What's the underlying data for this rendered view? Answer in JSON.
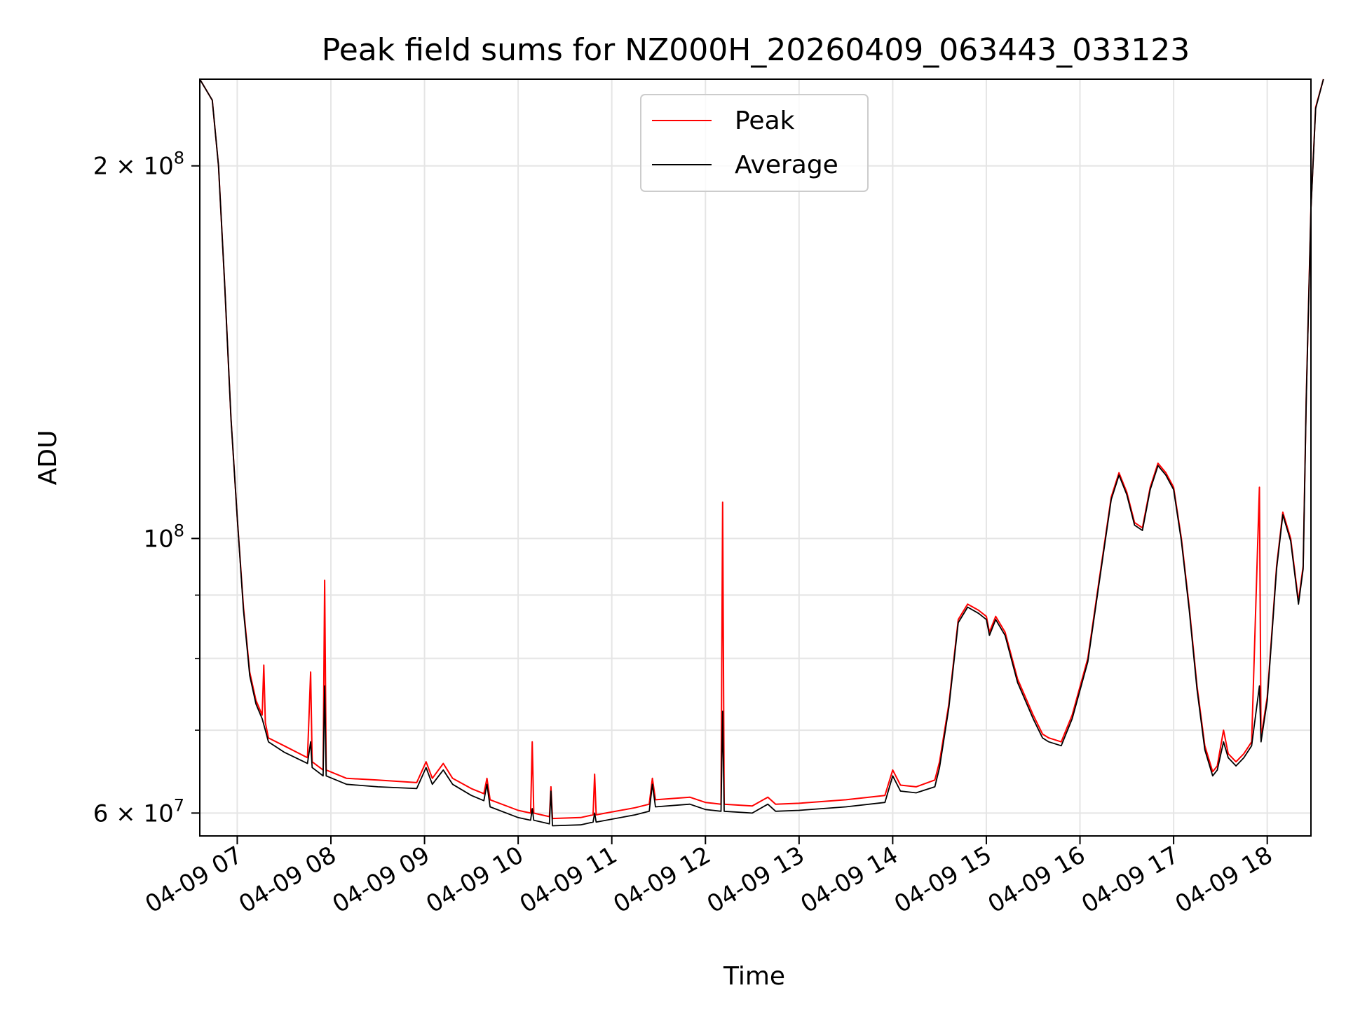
{
  "chart_data": {
    "type": "line",
    "title": "Peak field sums for NZ000H_20260409_063443_033123",
    "xlabel": "Time",
    "ylabel": "ADU",
    "yscale": "log",
    "ylim": [
      57500000,
      235000000
    ],
    "xlim": [
      "04-09 06:36",
      "04-09 18:28"
    ],
    "grid": true,
    "legend_position": "top-center",
    "x_ticks": [
      {
        "t": "04-09 07:00",
        "label": "04-09 07"
      },
      {
        "t": "04-09 08:00",
        "label": "04-09 08"
      },
      {
        "t": "04-09 09:00",
        "label": "04-09 09"
      },
      {
        "t": "04-09 10:00",
        "label": "04-09 10"
      },
      {
        "t": "04-09 11:00",
        "label": "04-09 11"
      },
      {
        "t": "04-09 12:00",
        "label": "04-09 12"
      },
      {
        "t": "04-09 13:00",
        "label": "04-09 13"
      },
      {
        "t": "04-09 14:00",
        "label": "04-09 14"
      },
      {
        "t": "04-09 15:00",
        "label": "04-09 15"
      },
      {
        "t": "04-09 16:00",
        "label": "04-09 16"
      },
      {
        "t": "04-09 17:00",
        "label": "04-09 17"
      },
      {
        "t": "04-09 18:00",
        "label": "04-09 18"
      }
    ],
    "y_major_ticks": [
      {
        "value": 60000000,
        "mant": "6",
        "exp": "7"
      },
      {
        "value": 100000000,
        "mant": "",
        "exp": "8"
      },
      {
        "value": 200000000,
        "mant": "2",
        "exp": "8"
      }
    ],
    "y_minor_gridlines": [
      70000000,
      80000000,
      90000000
    ],
    "series": [
      {
        "name": "Peak",
        "color": "#ff0000",
        "points": [
          [
            "04-09 06:36",
            235000000
          ],
          [
            "04-09 06:44",
            226000000
          ],
          [
            "04-09 06:48",
            200000000
          ],
          [
            "04-09 06:52",
            160000000
          ],
          [
            "04-09 06:56",
            125000000
          ],
          [
            "04-09 07:00",
            104000000
          ],
          [
            "04-09 07:04",
            88000000
          ],
          [
            "04-09 07:08",
            78000000
          ],
          [
            "04-09 07:12",
            74000000
          ],
          [
            "04-09 07:16",
            72000000
          ],
          [
            "04-09 07:17",
            79000000
          ],
          [
            "04-09 07:18",
            71000000
          ],
          [
            "04-09 07:20",
            69000000
          ],
          [
            "04-09 07:30",
            68000000
          ],
          [
            "04-09 07:45",
            66500000
          ],
          [
            "04-09 07:47",
            78000000
          ],
          [
            "04-09 07:48",
            66000000
          ],
          [
            "04-09 07:55",
            65000000
          ],
          [
            "04-09 07:56",
            92500000
          ],
          [
            "04-09 07:57",
            65000000
          ],
          [
            "04-09 08:10",
            64000000
          ],
          [
            "04-09 08:30",
            63800000
          ],
          [
            "04-09 08:55",
            63500000
          ],
          [
            "04-09 09:01",
            66000000
          ],
          [
            "04-09 09:05",
            64000000
          ],
          [
            "04-09 09:12",
            65800000
          ],
          [
            "04-09 09:18",
            64000000
          ],
          [
            "04-09 09:30",
            62800000
          ],
          [
            "04-09 09:38",
            62200000
          ],
          [
            "04-09 09:40",
            64000000
          ],
          [
            "04-09 09:42",
            61500000
          ],
          [
            "04-09 10:00",
            60300000
          ],
          [
            "04-09 10:08",
            60000000
          ],
          [
            "04-09 10:09",
            68500000
          ],
          [
            "04-09 10:10",
            60000000
          ],
          [
            "04-09 10:20",
            59600000
          ],
          [
            "04-09 10:21",
            63000000
          ],
          [
            "04-09 10:22",
            59400000
          ],
          [
            "04-09 10:40",
            59500000
          ],
          [
            "04-09 10:48",
            59800000
          ],
          [
            "04-09 10:49",
            64500000
          ],
          [
            "04-09 10:50",
            59800000
          ],
          [
            "04-09 11:15",
            60600000
          ],
          [
            "04-09 11:24",
            61000000
          ],
          [
            "04-09 11:26",
            64000000
          ],
          [
            "04-09 11:28",
            61500000
          ],
          [
            "04-09 11:50",
            61800000
          ],
          [
            "04-09 12:00",
            61200000
          ],
          [
            "04-09 12:10",
            61000000
          ],
          [
            "04-09 12:11",
            107000000
          ],
          [
            "04-09 12:12",
            61000000
          ],
          [
            "04-09 12:30",
            60800000
          ],
          [
            "04-09 12:40",
            61800000
          ],
          [
            "04-09 12:45",
            61000000
          ],
          [
            "04-09 13:00",
            61100000
          ],
          [
            "04-09 13:30",
            61500000
          ],
          [
            "04-09 13:55",
            62000000
          ],
          [
            "04-09 14:00",
            65000000
          ],
          [
            "04-09 14:05",
            63200000
          ],
          [
            "04-09 14:15",
            63000000
          ],
          [
            "04-09 14:27",
            63800000
          ],
          [
            "04-09 14:30",
            66000000
          ],
          [
            "04-09 14:36",
            73500000
          ],
          [
            "04-09 14:42",
            86000000
          ],
          [
            "04-09 14:48",
            88500000
          ],
          [
            "04-09 14:55",
            87500000
          ],
          [
            "04-09 15:00",
            86500000
          ],
          [
            "04-09 15:02",
            84000000
          ],
          [
            "04-09 15:06",
            86500000
          ],
          [
            "04-09 15:12",
            84000000
          ],
          [
            "04-09 15:20",
            77000000
          ],
          [
            "04-09 15:30",
            72000000
          ],
          [
            "04-09 15:36",
            69500000
          ],
          [
            "04-09 15:40",
            69000000
          ],
          [
            "04-09 15:48",
            68500000
          ],
          [
            "04-09 15:55",
            72000000
          ],
          [
            "04-09 16:05",
            80000000
          ],
          [
            "04-09 16:12",
            92000000
          ],
          [
            "04-09 16:20",
            108000000
          ],
          [
            "04-09 16:25",
            113000000
          ],
          [
            "04-09 16:30",
            109000000
          ],
          [
            "04-09 16:35",
            103000000
          ],
          [
            "04-09 16:40",
            102000000
          ],
          [
            "04-09 16:45",
            110000000
          ],
          [
            "04-09 16:50",
            115000000
          ],
          [
            "04-09 16:55",
            113000000
          ],
          [
            "04-09 17:00",
            110000000
          ],
          [
            "04-09 17:05",
            100000000
          ],
          [
            "04-09 17:10",
            88000000
          ],
          [
            "04-09 17:15",
            76000000
          ],
          [
            "04-09 17:20",
            68000000
          ],
          [
            "04-09 17:25",
            64800000
          ],
          [
            "04-09 17:28",
            65500000
          ],
          [
            "04-09 17:32",
            70000000
          ],
          [
            "04-09 17:35",
            67000000
          ],
          [
            "04-09 17:40",
            66000000
          ],
          [
            "04-09 17:45",
            67000000
          ],
          [
            "04-09 17:50",
            68500000
          ],
          [
            "04-09 17:55",
            110000000
          ],
          [
            "04-09 17:56",
            69000000
          ],
          [
            "04-09 18:00",
            74500000
          ],
          [
            "04-09 18:06",
            95000000
          ],
          [
            "04-09 18:10",
            105000000
          ],
          [
            "04-09 18:15",
            100000000
          ],
          [
            "04-09 18:20",
            89000000
          ],
          [
            "04-09 18:23",
            95000000
          ],
          [
            "04-09 18:25",
            130000000
          ],
          [
            "04-09 18:28",
            185000000
          ],
          [
            "04-09 18:31",
            223000000
          ],
          [
            "04-09 18:36",
            235000000
          ]
        ]
      },
      {
        "name": "Average",
        "color": "#000000",
        "points": [
          [
            "04-09 06:36",
            235000000
          ],
          [
            "04-09 06:44",
            226000000
          ],
          [
            "04-09 06:48",
            200000000
          ],
          [
            "04-09 06:52",
            160000000
          ],
          [
            "04-09 06:56",
            125000000
          ],
          [
            "04-09 07:00",
            104000000
          ],
          [
            "04-09 07:04",
            87500000
          ],
          [
            "04-09 07:08",
            77500000
          ],
          [
            "04-09 07:12",
            73500000
          ],
          [
            "04-09 07:16",
            71500000
          ],
          [
            "04-09 07:18",
            70000000
          ],
          [
            "04-09 07:20",
            68500000
          ],
          [
            "04-09 07:30",
            67200000
          ],
          [
            "04-09 07:45",
            65800000
          ],
          [
            "04-09 07:47",
            68500000
          ],
          [
            "04-09 07:48",
            65300000
          ],
          [
            "04-09 07:55",
            64300000
          ],
          [
            "04-09 07:56",
            76000000
          ],
          [
            "04-09 07:57",
            64300000
          ],
          [
            "04-09 08:10",
            63300000
          ],
          [
            "04-09 08:30",
            63000000
          ],
          [
            "04-09 08:55",
            62800000
          ],
          [
            "04-09 09:01",
            65300000
          ],
          [
            "04-09 09:05",
            63300000
          ],
          [
            "04-09 09:12",
            65000000
          ],
          [
            "04-09 09:18",
            63300000
          ],
          [
            "04-09 09:30",
            62000000
          ],
          [
            "04-09 09:38",
            61400000
          ],
          [
            "04-09 09:40",
            63300000
          ],
          [
            "04-09 09:42",
            60700000
          ],
          [
            "04-09 10:00",
            59500000
          ],
          [
            "04-09 10:08",
            59200000
          ],
          [
            "04-09 10:09",
            60500000
          ],
          [
            "04-09 10:10",
            59200000
          ],
          [
            "04-09 10:20",
            58800000
          ],
          [
            "04-09 10:21",
            62500000
          ],
          [
            "04-09 10:22",
            58600000
          ],
          [
            "04-09 10:40",
            58700000
          ],
          [
            "04-09 10:48",
            59000000
          ],
          [
            "04-09 10:49",
            60000000
          ],
          [
            "04-09 10:50",
            59000000
          ],
          [
            "04-09 11:15",
            59800000
          ],
          [
            "04-09 11:24",
            60200000
          ],
          [
            "04-09 11:26",
            63300000
          ],
          [
            "04-09 11:28",
            60700000
          ],
          [
            "04-09 11:50",
            61000000
          ],
          [
            "04-09 12:00",
            60400000
          ],
          [
            "04-09 12:10",
            60200000
          ],
          [
            "04-09 12:11",
            72500000
          ],
          [
            "04-09 12:12",
            60200000
          ],
          [
            "04-09 12:30",
            60000000
          ],
          [
            "04-09 12:40",
            61000000
          ],
          [
            "04-09 12:45",
            60200000
          ],
          [
            "04-09 13:00",
            60300000
          ],
          [
            "04-09 13:30",
            60700000
          ],
          [
            "04-09 13:55",
            61200000
          ],
          [
            "04-09 14:00",
            64300000
          ],
          [
            "04-09 14:05",
            62500000
          ],
          [
            "04-09 14:15",
            62300000
          ],
          [
            "04-09 14:27",
            63000000
          ],
          [
            "04-09 14:30",
            65300000
          ],
          [
            "04-09 14:36",
            73000000
          ],
          [
            "04-09 14:42",
            85500000
          ],
          [
            "04-09 14:48",
            88000000
          ],
          [
            "04-09 14:55",
            87000000
          ],
          [
            "04-09 15:00",
            86000000
          ],
          [
            "04-09 15:02",
            83500000
          ],
          [
            "04-09 15:06",
            86000000
          ],
          [
            "04-09 15:12",
            83500000
          ],
          [
            "04-09 15:20",
            76500000
          ],
          [
            "04-09 15:30",
            71500000
          ],
          [
            "04-09 15:36",
            69000000
          ],
          [
            "04-09 15:40",
            68500000
          ],
          [
            "04-09 15:48",
            68000000
          ],
          [
            "04-09 15:55",
            71500000
          ],
          [
            "04-09 16:05",
            79500000
          ],
          [
            "04-09 16:12",
            91500000
          ],
          [
            "04-09 16:20",
            107500000
          ],
          [
            "04-09 16:25",
            112500000
          ],
          [
            "04-09 16:30",
            108500000
          ],
          [
            "04-09 16:35",
            102500000
          ],
          [
            "04-09 16:40",
            101500000
          ],
          [
            "04-09 16:45",
            109500000
          ],
          [
            "04-09 16:50",
            114500000
          ],
          [
            "04-09 16:55",
            112500000
          ],
          [
            "04-09 17:00",
            109500000
          ],
          [
            "04-09 17:05",
            99500000
          ],
          [
            "04-09 17:10",
            87500000
          ],
          [
            "04-09 17:15",
            75500000
          ],
          [
            "04-09 17:20",
            67500000
          ],
          [
            "04-09 17:25",
            64300000
          ],
          [
            "04-09 17:28",
            65000000
          ],
          [
            "04-09 17:32",
            68500000
          ],
          [
            "04-09 17:35",
            66500000
          ],
          [
            "04-09 17:40",
            65500000
          ],
          [
            "04-09 17:45",
            66500000
          ],
          [
            "04-09 17:50",
            68000000
          ],
          [
            "04-09 17:55",
            76000000
          ],
          [
            "04-09 17:56",
            68500000
          ],
          [
            "04-09 18:00",
            74000000
          ],
          [
            "04-09 18:06",
            94500000
          ],
          [
            "04-09 18:10",
            104500000
          ],
          [
            "04-09 18:15",
            99500000
          ],
          [
            "04-09 18:20",
            88500000
          ],
          [
            "04-09 18:23",
            94500000
          ],
          [
            "04-09 18:25",
            129500000
          ],
          [
            "04-09 18:28",
            184500000
          ],
          [
            "04-09 18:31",
            222500000
          ],
          [
            "04-09 18:36",
            235000000
          ]
        ]
      }
    ]
  }
}
